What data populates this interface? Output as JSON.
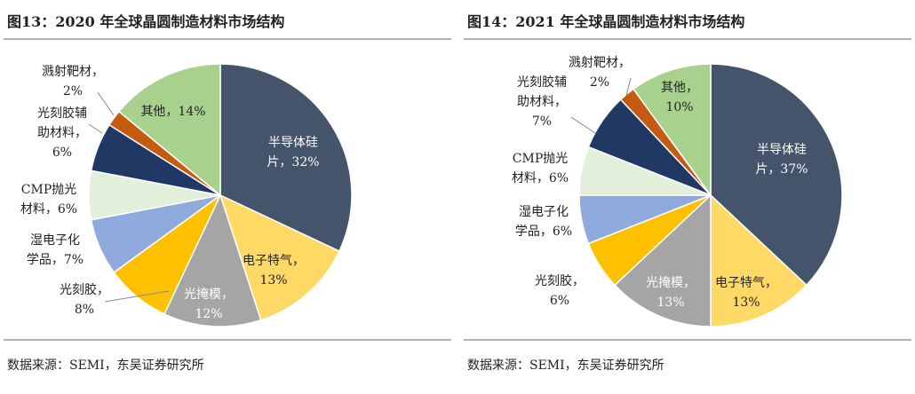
{
  "chart_data": [
    {
      "type": "pie",
      "title": "图13：2020 年全球晶圆制造材料市场结构",
      "categories": [
        "半导体硅片",
        "电子特气",
        "光掩模",
        "光刻胶",
        "湿电子化学品",
        "CMP抛光材料",
        "光刻胶辅助材料",
        "溅射靶材",
        "其他"
      ],
      "values": [
        32,
        13,
        12,
        8,
        7,
        6,
        6,
        2,
        14
      ],
      "value_labels": [
        "半导体硅\n片，32%",
        "电子特气，\n13%",
        "光掩模，\n12%",
        "光刻胶，\n8%",
        "湿电子化\n学品，7%",
        "CMP抛光\n材料，6%",
        "光刻胶辅\n助材料，\n6%",
        "溅射靶材，\n2%",
        "其他，14%"
      ],
      "colors": [
        "#44546a",
        "#ffd966",
        "#a5a5a5",
        "#ffc000",
        "#8faadc",
        "#e2efda",
        "#203864",
        "#c55a11",
        "#a9d18e"
      ],
      "source": "数据来源：SEMI，东吴证券研究所"
    },
    {
      "type": "pie",
      "title": "图14：2021 年全球晶圆制造材料市场结构",
      "categories": [
        "半导体硅片",
        "电子特气",
        "光掩模",
        "光刻胶",
        "湿电子化学品",
        "CMP抛光材料",
        "光刻胶辅助材料",
        "溅射靶材",
        "其他"
      ],
      "values": [
        37,
        13,
        13,
        6,
        6,
        6,
        7,
        2,
        10
      ],
      "value_labels": [
        "半导体硅\n片，37%",
        "电子特气，\n13%",
        "光掩模，\n13%",
        "光刻胶，\n6%",
        "湿电子化\n学品，6%",
        "CMP抛光\n材料，6%",
        "光刻胶辅\n助材料，\n7%",
        "溅射靶材，\n2%",
        "其他，\n10%"
      ],
      "colors": [
        "#44546a",
        "#ffd966",
        "#a5a5a5",
        "#ffc000",
        "#8faadc",
        "#e2efda",
        "#203864",
        "#c55a11",
        "#a9d18e"
      ],
      "source": "数据来源：SEMI，东吴证券研究所"
    }
  ]
}
